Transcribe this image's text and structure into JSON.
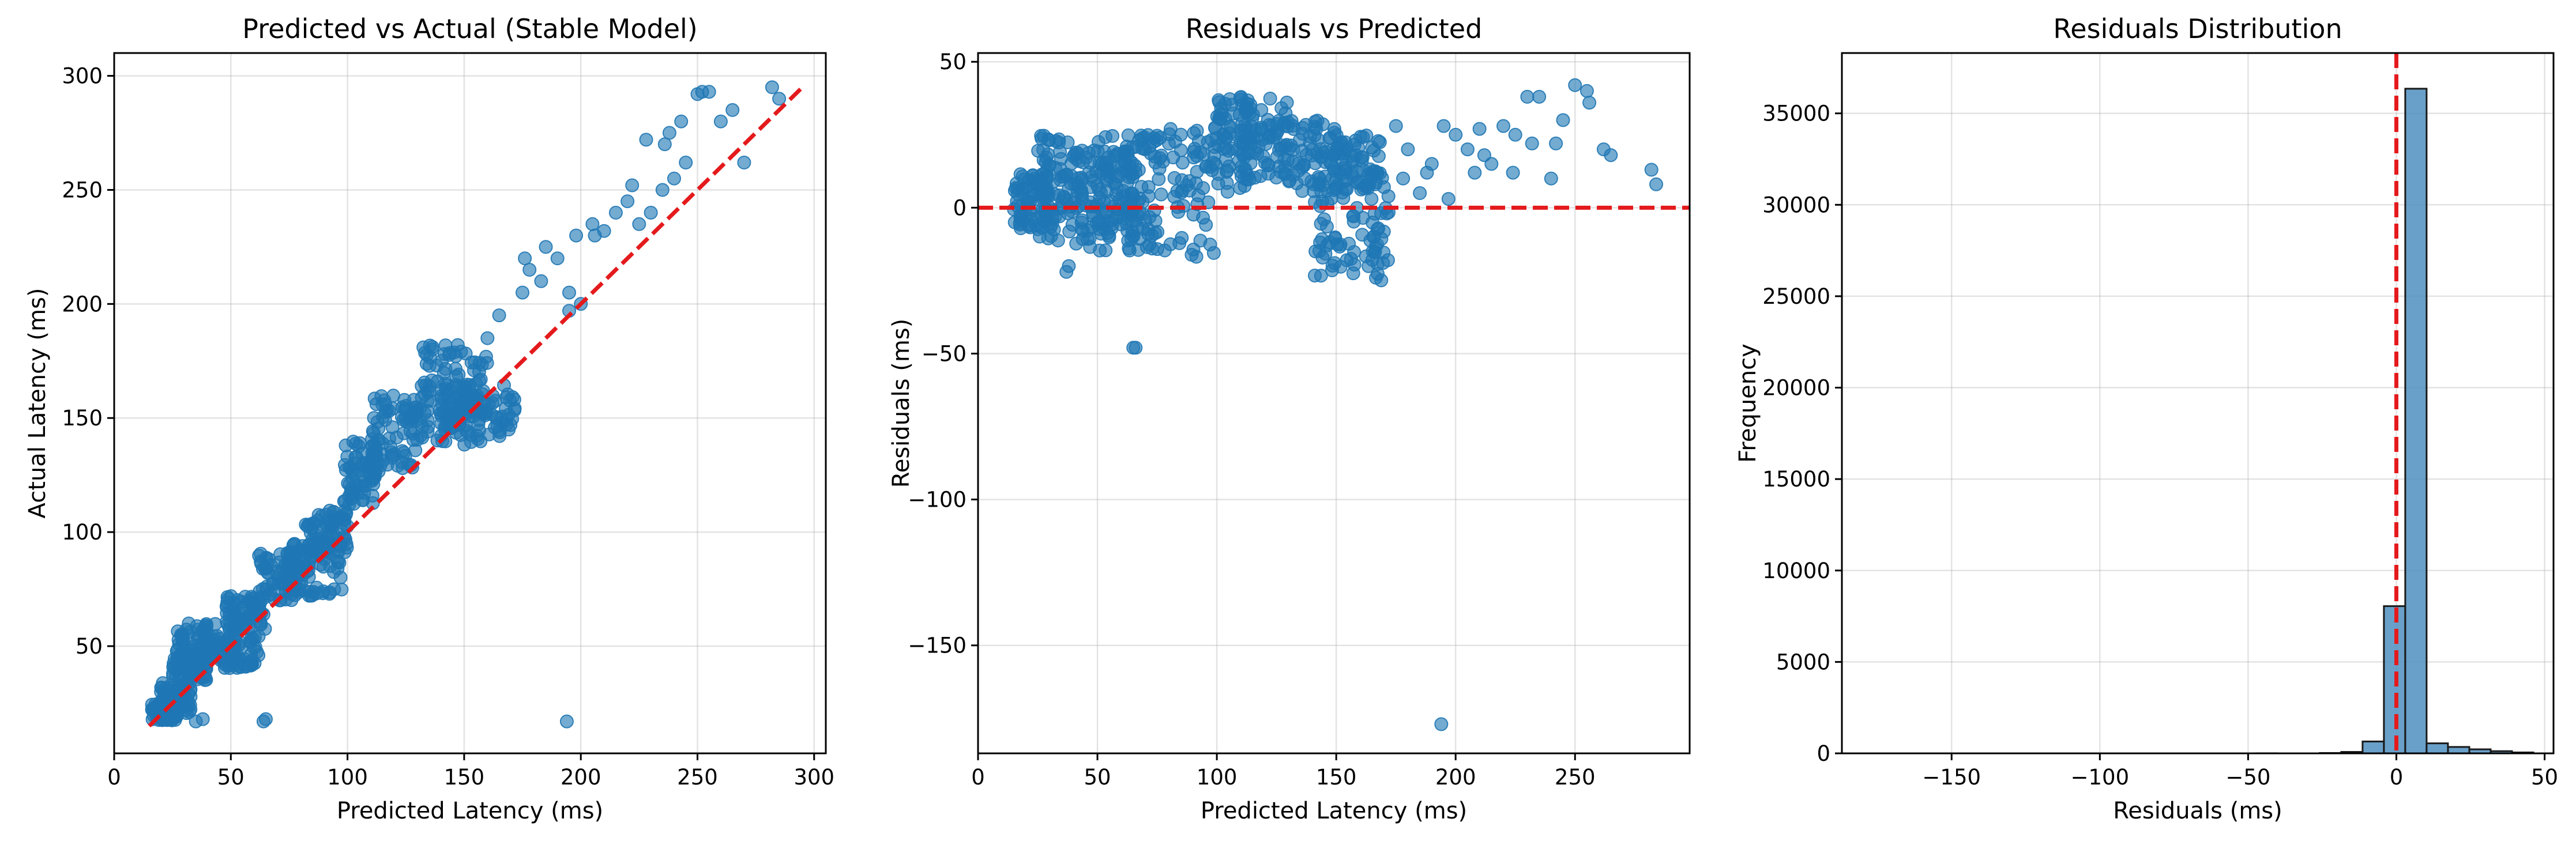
{
  "colors": {
    "points": "#1f77b4",
    "reference_line": "#e41a1c",
    "hist_fill": "#4f8fc0",
    "hist_edge": "#1a1a1a"
  },
  "chart_data": [
    {
      "id": "pred-vs-actual",
      "type": "scatter",
      "title": "Predicted vs Actual (Stable Model)",
      "xlabel": "Predicted Latency (ms)",
      "ylabel": "Actual Latency (ms)",
      "xlim": [
        0,
        305
      ],
      "ylim": [
        3,
        310
      ],
      "xticks": [
        0,
        50,
        100,
        150,
        200,
        250,
        300
      ],
      "yticks": [
        50,
        100,
        150,
        200,
        250,
        300
      ],
      "grid": true,
      "reference_line": {
        "style": "dashed",
        "from": [
          15,
          15
        ],
        "to": [
          295,
          295
        ]
      },
      "clusters": [
        {
          "x": [
            16,
            27
          ],
          "y": [
            17,
            25
          ]
        },
        {
          "x": [
            20,
            33
          ],
          "y": [
            20,
            34
          ]
        },
        {
          "x": [
            25,
            40
          ],
          "y": [
            35,
            48
          ]
        },
        {
          "x": [
            27,
            45
          ],
          "y": [
            45,
            60
          ]
        },
        {
          "x": [
            45,
            63
          ],
          "y": [
            40,
            55
          ]
        },
        {
          "x": [
            48,
            65
          ],
          "y": [
            57,
            72
          ]
        },
        {
          "x": [
            62,
            78
          ],
          "y": [
            70,
            92
          ]
        },
        {
          "x": [
            75,
            98
          ],
          "y": [
            72,
            95
          ]
        },
        {
          "x": [
            82,
            100
          ],
          "y": [
            90,
            110
          ]
        },
        {
          "x": [
            98,
            112
          ],
          "y": [
            110,
            140
          ]
        },
        {
          "x": [
            110,
            130
          ],
          "y": [
            125,
            160
          ]
        },
        {
          "x": [
            125,
            160
          ],
          "y": [
            140,
            160
          ]
        },
        {
          "x": [
            140,
            172
          ],
          "y": [
            138,
            165
          ]
        },
        {
          "x": [
            130,
            160
          ],
          "y": [
            150,
            182
          ]
        }
      ],
      "points": [
        [
          38,
          18
        ],
        [
          65,
          18
        ],
        [
          194,
          17
        ],
        [
          35,
          17
        ],
        [
          64,
          17
        ],
        [
          160,
          185
        ],
        [
          165,
          195
        ],
        [
          175,
          205
        ],
        [
          178,
          215
        ],
        [
          185,
          225
        ],
        [
          190,
          220
        ],
        [
          195,
          205
        ],
        [
          200,
          200
        ],
        [
          198,
          230
        ],
        [
          205,
          235
        ],
        [
          210,
          232
        ],
        [
          215,
          240
        ],
        [
          220,
          245
        ],
        [
          225,
          235
        ],
        [
          230,
          240
        ],
        [
          235,
          250
        ],
        [
          240,
          255
        ],
        [
          236,
          270
        ],
        [
          238,
          275
        ],
        [
          243,
          280
        ],
        [
          250,
          292
        ],
        [
          252,
          293
        ],
        [
          255,
          293
        ],
        [
          260,
          280
        ],
        [
          265,
          285
        ],
        [
          270,
          262
        ],
        [
          282,
          295
        ],
        [
          285,
          290
        ],
        [
          176,
          220
        ],
        [
          183,
          210
        ],
        [
          195,
          197
        ],
        [
          206,
          230
        ],
        [
          222,
          252
        ],
        [
          228,
          272
        ],
        [
          245,
          262
        ]
      ]
    },
    {
      "id": "residuals-vs-predicted",
      "type": "scatter",
      "title": "Residuals vs Predicted",
      "xlabel": "Predicted Latency (ms)",
      "ylabel": "Residuals (ms)",
      "xlim": [
        0,
        298
      ],
      "ylim": [
        -187,
        53
      ],
      "xticks": [
        0,
        50,
        100,
        150,
        200,
        250
      ],
      "yticks": [
        50,
        0,
        -50,
        -100,
        -150
      ],
      "grid": true,
      "reference_line": {
        "style": "dashed",
        "y": 0
      },
      "clusters": [
        {
          "x": [
            15,
            30
          ],
          "y": [
            -8,
            12
          ]
        },
        {
          "x": [
            25,
            40
          ],
          "y": [
            -12,
            25
          ]
        },
        {
          "x": [
            40,
            55
          ],
          "y": [
            -15,
            20
          ]
        },
        {
          "x": [
            50,
            65
          ],
          "y": [
            -12,
            25
          ]
        },
        {
          "x": [
            60,
            75
          ],
          "y": [
            -15,
            25
          ]
        },
        {
          "x": [
            75,
            100
          ],
          "y": [
            -18,
            28
          ]
        },
        {
          "x": [
            100,
            115
          ],
          "y": [
            5,
            38
          ]
        },
        {
          "x": [
            110,
            130
          ],
          "y": [
            10,
            38
          ]
        },
        {
          "x": [
            130,
            150
          ],
          "y": [
            5,
            30
          ]
        },
        {
          "x": [
            140,
            172
          ],
          "y": [
            -25,
            5
          ]
        },
        {
          "x": [
            150,
            170
          ],
          "y": [
            5,
            25
          ]
        }
      ],
      "points": [
        [
          65,
          -48
        ],
        [
          66,
          -48
        ],
        [
          194,
          -177
        ],
        [
          38,
          -20
        ],
        [
          37,
          -22
        ],
        [
          175,
          28
        ],
        [
          180,
          20
        ],
        [
          185,
          5
        ],
        [
          190,
          15
        ],
        [
          195,
          28
        ],
        [
          200,
          25
        ],
        [
          205,
          20
        ],
        [
          210,
          27
        ],
        [
          215,
          15
        ],
        [
          220,
          28
        ],
        [
          225,
          25
        ],
        [
          230,
          38
        ],
        [
          235,
          38
        ],
        [
          240,
          10
        ],
        [
          245,
          30
        ],
        [
          250,
          42
        ],
        [
          255,
          40
        ],
        [
          262,
          20
        ],
        [
          265,
          18
        ],
        [
          282,
          13
        ],
        [
          284,
          8
        ],
        [
          178,
          10
        ],
        [
          188,
          12
        ],
        [
          208,
          12
        ],
        [
          224,
          12
        ],
        [
          232,
          22
        ],
        [
          242,
          22
        ],
        [
          256,
          36
        ],
        [
          197,
          3
        ],
        [
          212,
          18
        ]
      ]
    },
    {
      "id": "residuals-distribution",
      "type": "bar",
      "title": "Residuals Distribution",
      "xlabel": "Residuals (ms)",
      "ylabel": "Frequency",
      "xlim": [
        -187,
        53
      ],
      "ylim": [
        0,
        38300
      ],
      "xticks": [
        -150,
        -100,
        -50,
        0,
        50
      ],
      "yticks": [
        0,
        5000,
        10000,
        15000,
        20000,
        25000,
        30000,
        35000
      ],
      "grid": true,
      "reference_line": {
        "style": "dashed",
        "x": 0
      },
      "bin_edges": [
        -177,
        -169.8,
        -162.6,
        -155.4,
        -148.2,
        -141,
        -133.8,
        -126.6,
        -119.4,
        -112.2,
        -105,
        -97.8,
        -90.6,
        -83.4,
        -76.2,
        -69,
        -61.8,
        -54.6,
        -47.4,
        -40.2,
        -33,
        -25.8,
        -18.6,
        -11.4,
        -4.2,
        3,
        10.2,
        17.4,
        24.6,
        31.8,
        39,
        46.2
      ],
      "counts": [
        1,
        0,
        0,
        0,
        0,
        0,
        0,
        0,
        0,
        0,
        0,
        0,
        0,
        0,
        0,
        0,
        0,
        0,
        2,
        0,
        0,
        20,
        80,
        650,
        8050,
        36350,
        550,
        350,
        220,
        120,
        50
      ]
    }
  ]
}
